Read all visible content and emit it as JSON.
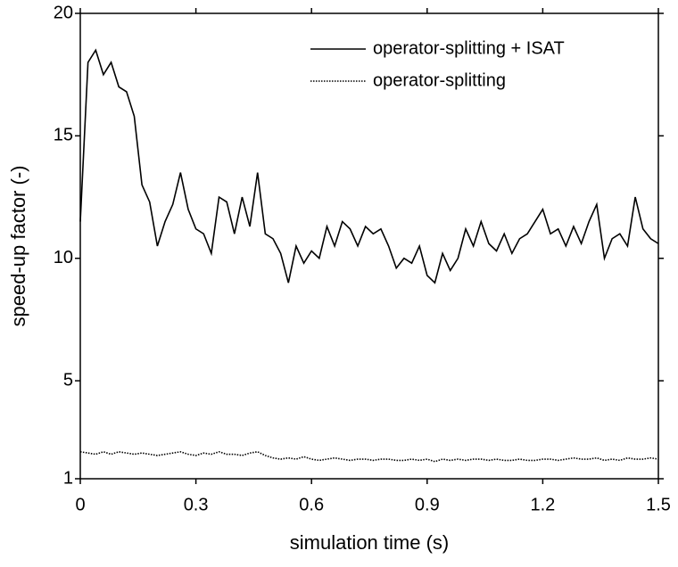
{
  "chart_data": {
    "type": "line",
    "xlabel": "simulation time (s)",
    "ylabel": "speed-up factor (-)",
    "x": [
      0,
      0.02,
      0.04,
      0.06,
      0.08,
      0.1,
      0.12,
      0.14,
      0.16,
      0.18,
      0.2,
      0.22,
      0.24,
      0.26,
      0.28,
      0.3,
      0.32,
      0.34,
      0.36,
      0.38,
      0.4,
      0.42,
      0.44,
      0.46,
      0.48,
      0.5,
      0.52,
      0.54,
      0.56,
      0.58,
      0.6,
      0.62,
      0.64,
      0.66,
      0.68,
      0.7,
      0.72,
      0.74,
      0.76,
      0.78,
      0.8,
      0.82,
      0.84,
      0.86,
      0.88,
      0.9,
      0.92,
      0.94,
      0.96,
      0.98,
      1.0,
      1.02,
      1.04,
      1.06,
      1.08,
      1.1,
      1.12,
      1.14,
      1.16,
      1.18,
      1.2,
      1.22,
      1.24,
      1.26,
      1.28,
      1.3,
      1.32,
      1.34,
      1.36,
      1.38,
      1.4,
      1.42,
      1.44,
      1.46,
      1.48,
      1.5
    ],
    "series": [
      {
        "name": "operator-splitting + ISAT",
        "color": "#000000",
        "dash": "solid",
        "values": [
          11.5,
          18.0,
          18.5,
          17.5,
          18.0,
          17.0,
          16.8,
          15.8,
          13.0,
          12.3,
          10.5,
          11.5,
          12.2,
          13.5,
          12.0,
          11.2,
          11.0,
          10.2,
          12.5,
          12.3,
          11.0,
          12.5,
          11.3,
          13.5,
          11.0,
          10.8,
          10.2,
          9.0,
          10.5,
          9.8,
          10.3,
          10.0,
          11.3,
          10.5,
          11.5,
          11.2,
          10.5,
          11.3,
          11.0,
          11.2,
          10.5,
          9.6,
          10.0,
          9.8,
          10.5,
          9.3,
          9.0,
          10.2,
          9.5,
          10.0,
          11.2,
          10.5,
          11.5,
          10.6,
          10.3,
          11.0,
          10.2,
          10.8,
          11.0,
          11.5,
          12.0,
          11.0,
          11.2,
          10.5,
          11.3,
          10.6,
          11.5,
          12.2,
          10.0,
          10.8,
          11.0,
          10.5,
          12.5,
          11.2,
          10.8,
          10.6
        ]
      },
      {
        "name": "operator-splitting",
        "color": "#000000",
        "dash": "dotted",
        "values": [
          2.1,
          2.05,
          2.0,
          2.1,
          2.0,
          2.1,
          2.05,
          2.0,
          2.05,
          2.0,
          1.95,
          2.0,
          2.05,
          2.1,
          2.0,
          1.95,
          2.05,
          2.0,
          2.1,
          2.0,
          2.0,
          1.95,
          2.05,
          2.1,
          1.95,
          1.85,
          1.8,
          1.85,
          1.8,
          1.9,
          1.8,
          1.75,
          1.8,
          1.85,
          1.8,
          1.75,
          1.8,
          1.8,
          1.75,
          1.8,
          1.8,
          1.75,
          1.75,
          1.8,
          1.75,
          1.8,
          1.7,
          1.8,
          1.75,
          1.8,
          1.75,
          1.8,
          1.8,
          1.75,
          1.8,
          1.75,
          1.75,
          1.8,
          1.75,
          1.75,
          1.8,
          1.8,
          1.75,
          1.8,
          1.85,
          1.8,
          1.8,
          1.85,
          1.75,
          1.8,
          1.75,
          1.85,
          1.8,
          1.8,
          1.85,
          1.8
        ]
      }
    ],
    "xlim": [
      0,
      1.5
    ],
    "xticks": [
      0,
      0.3,
      0.6,
      0.9,
      {
        "value": 1.2,
        "label": "1.2"
      },
      1.5
    ],
    "ylim": [
      1,
      20
    ],
    "yticks": [
      1,
      5,
      10,
      15,
      20
    ],
    "legend": "upper right"
  }
}
